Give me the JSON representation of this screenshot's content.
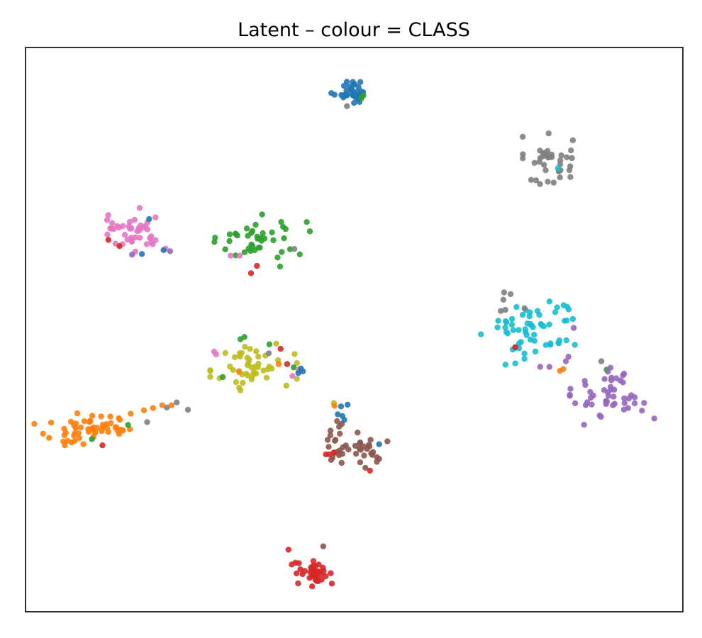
{
  "chart_data": {
    "type": "scatter",
    "title": "Latent – colour = CLASS",
    "xlabel": "",
    "ylabel": "",
    "xlim": [
      0,
      100
    ],
    "ylim": [
      0,
      100
    ],
    "grid": false,
    "x_ticks": false,
    "y_ticks": false,
    "legend": "none",
    "colors": {
      "blue": "#1f77b4",
      "orange": "#ff7f0e",
      "green": "#2ca02c",
      "red": "#d62728",
      "purple": "#9467bd",
      "brown": "#8c564b",
      "pink": "#e377c2",
      "gray": "#7f7f7f",
      "olive": "#bcbd22",
      "cyan": "#17becf"
    },
    "clusters": [
      {
        "color": "blue",
        "center": [
          49.5,
          92.3
        ],
        "spread": [
          1.4,
          1.1
        ],
        "count": 34,
        "outliers": [
          {
            "x": 48.9,
            "y": 89.6,
            "color": "gray"
          },
          {
            "x": 51.1,
            "y": 91.0,
            "color": "green"
          },
          {
            "x": 51.4,
            "y": 91.5,
            "color": "green"
          }
        ]
      },
      {
        "color": "gray",
        "center": [
          79.6,
          79.5
        ],
        "spread": [
          1.8,
          2.4
        ],
        "count": 38,
        "outliers": [
          {
            "x": 81.0,
            "y": 78.6,
            "color": "cyan"
          }
        ]
      },
      {
        "color": "pink",
        "center": [
          16.0,
          67.8
        ],
        "spread": [
          2.9,
          1.9
        ],
        "count": 42,
        "outliers": [
          {
            "x": 18.8,
            "y": 69.6,
            "color": "blue"
          },
          {
            "x": 12.6,
            "y": 65.9,
            "color": "red"
          },
          {
            "x": 14.3,
            "y": 64.8,
            "color": "red"
          },
          {
            "x": 16.2,
            "y": 63.3,
            "color": "purple"
          },
          {
            "x": 17.7,
            "y": 63.4,
            "color": "blue"
          },
          {
            "x": 21.0,
            "y": 64.1,
            "color": "blue"
          },
          {
            "x": 22.0,
            "y": 63.9,
            "color": "purple"
          }
        ]
      },
      {
        "color": "green",
        "center": [
          36.0,
          65.8
        ],
        "spread": [
          3.3,
          2.1
        ],
        "count": 42,
        "outliers": [
          {
            "x": 31.2,
            "y": 63.1,
            "color": "pink"
          },
          {
            "x": 32.6,
            "y": 63.1,
            "color": "pink"
          },
          {
            "x": 34.3,
            "y": 60.0,
            "color": "red"
          },
          {
            "x": 35.2,
            "y": 61.3,
            "color": "red"
          },
          {
            "x": 40.9,
            "y": 64.3,
            "color": "gray"
          }
        ]
      },
      {
        "color": "cyan",
        "center": [
          77.2,
          50.4
        ],
        "spread": [
          3.6,
          3.0
        ],
        "count": 60,
        "outliers": [
          {
            "x": 72.8,
            "y": 56.6,
            "color": "gray"
          },
          {
            "x": 73.8,
            "y": 56.3,
            "color": "gray"
          },
          {
            "x": 72.7,
            "y": 55.3,
            "color": "gray"
          },
          {
            "x": 73.0,
            "y": 53.5,
            "color": "gray"
          },
          {
            "x": 72.3,
            "y": 53.3,
            "color": "gray"
          },
          {
            "x": 75.9,
            "y": 53.8,
            "color": "gray"
          },
          {
            "x": 74.5,
            "y": 46.9,
            "color": "red"
          },
          {
            "x": 82.6,
            "y": 45.2,
            "color": "purple"
          },
          {
            "x": 82.2,
            "y": 44.4,
            "color": "purple"
          },
          {
            "x": 81.8,
            "y": 43.0,
            "color": "orange"
          },
          {
            "x": 81.3,
            "y": 42.7,
            "color": "orange"
          },
          {
            "x": 87.6,
            "y": 44.4,
            "color": "gray"
          },
          {
            "x": 88.4,
            "y": 42.9,
            "color": "green"
          },
          {
            "x": 83.4,
            "y": 50.3,
            "color": "purple"
          }
        ]
      },
      {
        "color": "purple",
        "center": [
          89.4,
          38.2
        ],
        "spread": [
          3.0,
          2.3
        ],
        "count": 48,
        "outliers": [
          {
            "x": 78.3,
            "y": 43.4,
            "color": "purple"
          },
          {
            "x": 79.7,
            "y": 43.4,
            "color": "purple"
          }
        ]
      },
      {
        "color": "olive",
        "center": [
          34.7,
          43.4
        ],
        "spread": [
          3.0,
          2.1
        ],
        "count": 48,
        "outliers": [
          {
            "x": 29.0,
            "y": 45.6,
            "color": "pink"
          },
          {
            "x": 28.7,
            "y": 46.1,
            "color": "pink"
          },
          {
            "x": 33.3,
            "y": 48.7,
            "color": "green"
          },
          {
            "x": 32.7,
            "y": 48.3,
            "color": "green"
          },
          {
            "x": 37.1,
            "y": 47.4,
            "color": "green"
          },
          {
            "x": 38.8,
            "y": 46.6,
            "color": "red"
          },
          {
            "x": 37.0,
            "y": 45.8,
            "color": "gray"
          },
          {
            "x": 38.5,
            "y": 43.9,
            "color": "orange"
          },
          {
            "x": 39.8,
            "y": 43.9,
            "color": "red"
          },
          {
            "x": 40.8,
            "y": 43.3,
            "color": "green"
          },
          {
            "x": 41.5,
            "y": 42.9,
            "color": "pink"
          },
          {
            "x": 30.0,
            "y": 41.6,
            "color": "green"
          },
          {
            "x": 32.5,
            "y": 42.5,
            "color": "orange"
          },
          {
            "x": 40.6,
            "y": 41.8,
            "color": "pink"
          },
          {
            "x": 41.5,
            "y": 42.3,
            "color": "blue"
          },
          {
            "x": 42.2,
            "y": 42.6,
            "color": "blue"
          },
          {
            "x": 41.9,
            "y": 43.1,
            "color": "blue"
          }
        ]
      },
      {
        "color": "orange",
        "center": [
          9.7,
          32.3
        ],
        "spread": [
          3.8,
          1.3
        ],
        "count": 52,
        "outliers": [
          {
            "x": 12.9,
            "y": 34.6,
            "color": "orange"
          },
          {
            "x": 14.2,
            "y": 34.3,
            "color": "orange"
          },
          {
            "x": 16.0,
            "y": 35.1,
            "color": "orange"
          },
          {
            "x": 18.0,
            "y": 35.7,
            "color": "orange"
          },
          {
            "x": 19.4,
            "y": 36.1,
            "color": "orange"
          },
          {
            "x": 20.8,
            "y": 36.6,
            "color": "orange"
          },
          {
            "x": 22.2,
            "y": 36.6,
            "color": "orange"
          },
          {
            "x": 23.0,
            "y": 37.1,
            "color": "gray"
          },
          {
            "x": 21.5,
            "y": 36.2,
            "color": "gray"
          },
          {
            "x": 24.7,
            "y": 35.8,
            "color": "gray"
          },
          {
            "x": 18.5,
            "y": 33.6,
            "color": "gray"
          },
          {
            "x": 15.6,
            "y": 33.1,
            "color": "green"
          },
          {
            "x": 10.1,
            "y": 30.6,
            "color": "green"
          },
          {
            "x": 11.7,
            "y": 29.5,
            "color": "red"
          },
          {
            "x": 8.8,
            "y": 29.7,
            "color": "orange"
          },
          {
            "x": 6.4,
            "y": 30.3,
            "color": "orange"
          },
          {
            "x": 6.0,
            "y": 29.5,
            "color": "orange"
          }
        ]
      },
      {
        "color": "brown",
        "center": [
          50.2,
          29.6
        ],
        "spread": [
          2.6,
          1.9
        ],
        "count": 40,
        "outliers": [
          {
            "x": 46.9,
            "y": 37.0,
            "color": "olive"
          },
          {
            "x": 47.0,
            "y": 36.5,
            "color": "orange"
          },
          {
            "x": 47.5,
            "y": 35.0,
            "color": "blue"
          },
          {
            "x": 48.0,
            "y": 36.4,
            "color": "blue"
          },
          {
            "x": 49.0,
            "y": 36.7,
            "color": "blue"
          },
          {
            "x": 48.2,
            "y": 34.7,
            "color": "blue"
          },
          {
            "x": 48.5,
            "y": 34.0,
            "color": "blue"
          },
          {
            "x": 46.4,
            "y": 32.1,
            "color": "brown"
          },
          {
            "x": 47.7,
            "y": 32.8,
            "color": "brown"
          },
          {
            "x": 45.7,
            "y": 27.9,
            "color": "red"
          },
          {
            "x": 46.2,
            "y": 27.9,
            "color": "red"
          },
          {
            "x": 46.9,
            "y": 28.2,
            "color": "red"
          },
          {
            "x": 52.4,
            "y": 25.0,
            "color": "red"
          },
          {
            "x": 53.8,
            "y": 27.1,
            "color": "brown"
          },
          {
            "x": 53.8,
            "y": 29.7,
            "color": "blue"
          }
        ]
      },
      {
        "color": "red",
        "center": [
          43.8,
          6.8
        ],
        "spread": [
          1.5,
          1.0
        ],
        "count": 36,
        "outliers": [
          {
            "x": 40.0,
            "y": 11.0,
            "color": "red"
          },
          {
            "x": 45.3,
            "y": 11.6,
            "color": "brown"
          },
          {
            "x": 43.6,
            "y": 4.5,
            "color": "red"
          },
          {
            "x": 46.6,
            "y": 5.0,
            "color": "red"
          }
        ]
      }
    ]
  }
}
